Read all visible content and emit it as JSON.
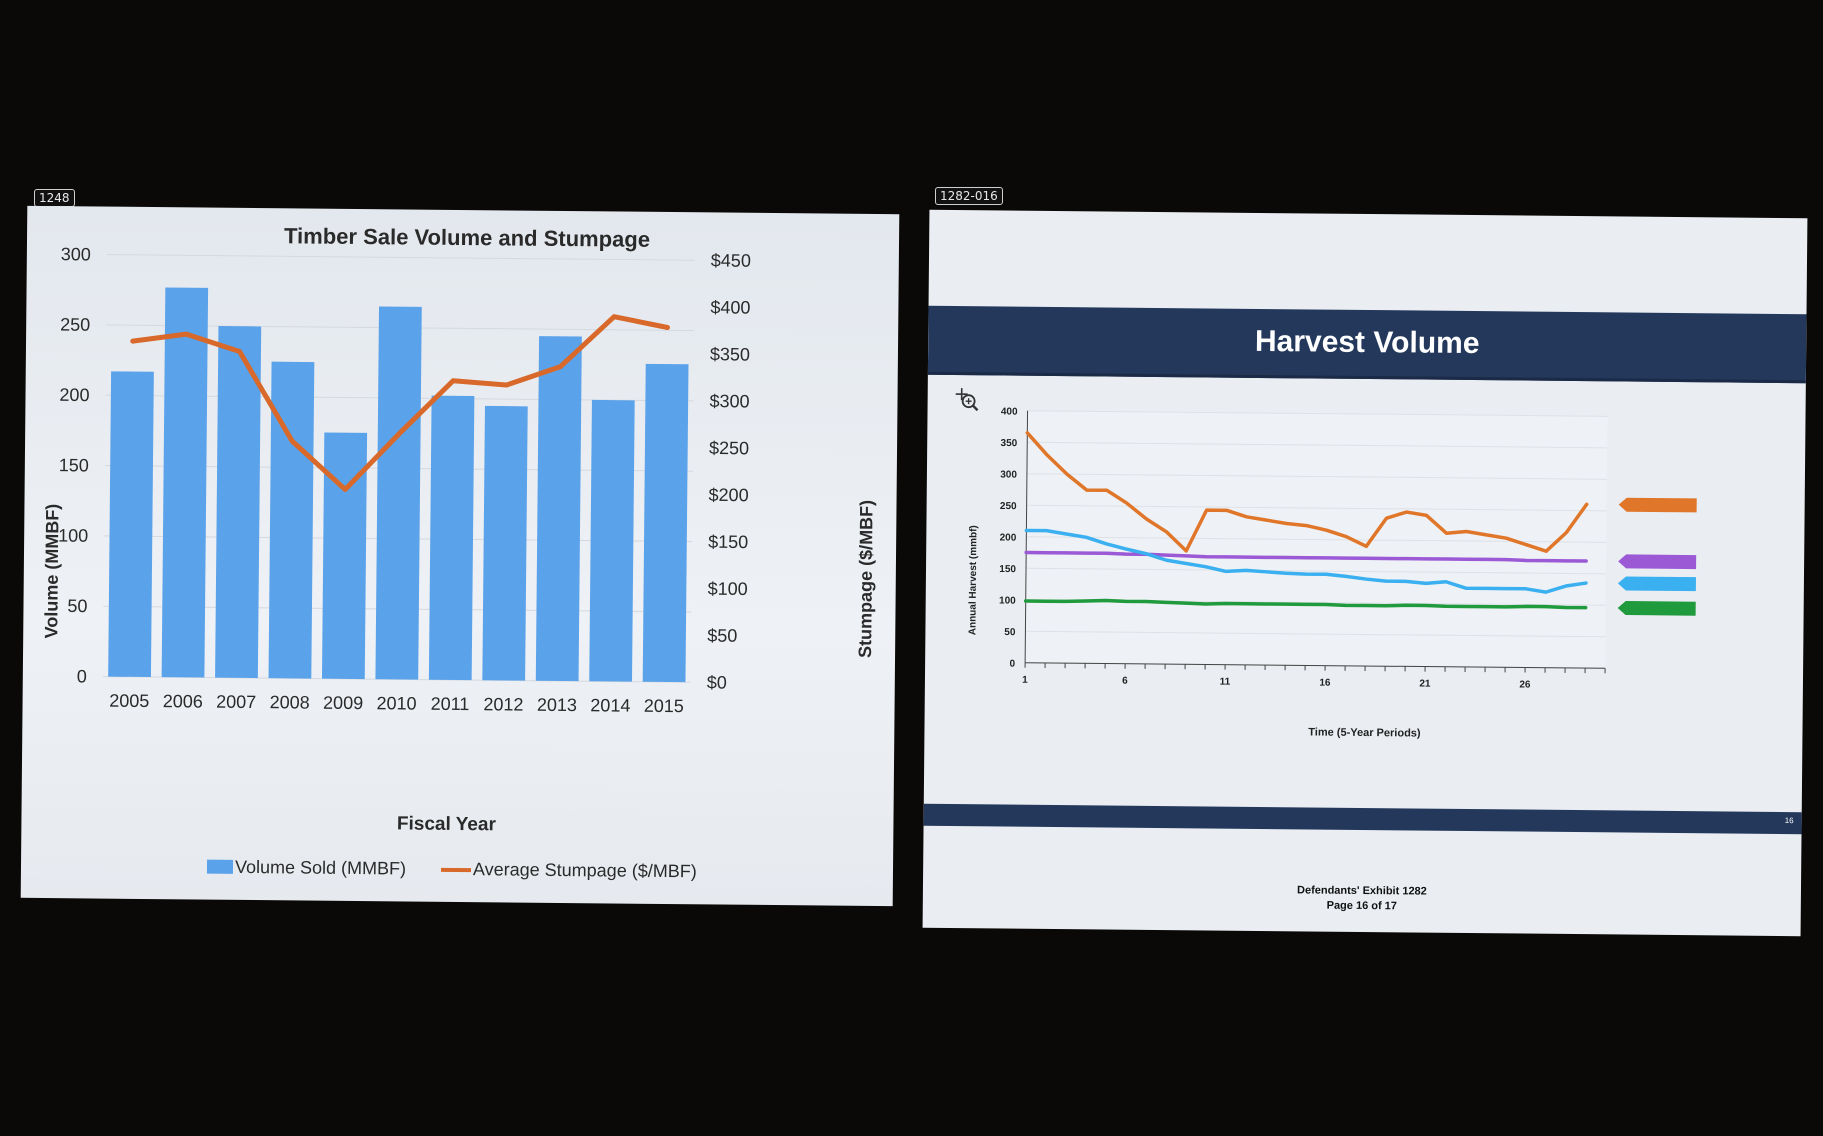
{
  "tags": {
    "left": "1248",
    "right": "1282-016"
  },
  "left_chart": {
    "title": "Timber Sale Volume and Stumpage",
    "xlabel": "Fiscal Year",
    "ylabel_left": "Volume (MMBF)",
    "ylabel_right": "Stumpage ($/MBF)",
    "left_ticks": [
      "0",
      "50",
      "100",
      "150",
      "200",
      "250",
      "300"
    ],
    "right_ticks": [
      "$0",
      "$50",
      "$100",
      "$150",
      "$200",
      "$250",
      "$300",
      "$350",
      "$400",
      "$450"
    ],
    "legend": {
      "bar": "Volume Sold (MMBF)",
      "line": "Average Stumpage ($/MBF)"
    },
    "colors": {
      "bar": "#5aa2ea",
      "line": "#d8692a"
    }
  },
  "right_slide": {
    "title": "Harvest Volume",
    "ylabel": "Annual Harvest (mmbf)",
    "xlabel": "Time (5-Year Periods)",
    "y_ticks": [
      "0",
      "50",
      "100",
      "150",
      "200",
      "250",
      "300",
      "350",
      "400"
    ],
    "x_ticks": [
      "1",
      "6",
      "11",
      "16",
      "21",
      "26"
    ],
    "slide_number": "16",
    "exhibit_line1": "Defendants' Exhibit 1282",
    "exhibit_line2": "Page 16 of 17",
    "zoom_icon": "zoom-in-icon"
  },
  "chart_data": [
    {
      "type": "bar",
      "title": "Timber Sale Volume and Stumpage",
      "xlabel": "Fiscal Year",
      "ylabel": "Volume (MMBF)",
      "y2label": "Stumpage ($/MBF)",
      "categories": [
        "2005",
        "2006",
        "2007",
        "2008",
        "2009",
        "2010",
        "2011",
        "2012",
        "2013",
        "2014",
        "2015"
      ],
      "ylim": [
        0,
        300
      ],
      "y2lim": [
        0,
        450
      ],
      "grid": true,
      "legend_position": "bottom",
      "series": [
        {
          "name": "Volume Sold (MMBF)",
          "type": "bar",
          "axis": "left",
          "values": [
            217,
            277,
            250,
            225,
            175,
            265,
            202,
            195,
            245,
            200,
            226
          ],
          "color": "#5aa2ea"
        },
        {
          "name": "Average Stumpage ($/MBF)",
          "type": "line",
          "axis": "right",
          "values": [
            358,
            366,
            348,
            253,
            202,
            262,
            319,
            315,
            335,
            389,
            378
          ],
          "color": "#d8692a"
        }
      ]
    },
    {
      "type": "line",
      "title": "Harvest Volume",
      "xlabel": "Time (5-Year Periods)",
      "ylabel": "Annual Harvest (mmbf)",
      "xlim": [
        1,
        30
      ],
      "ylim": [
        0,
        400
      ],
      "grid": true,
      "series": [
        {
          "color": "#e0762a",
          "x": [
            1,
            2,
            3,
            4,
            5,
            6,
            7,
            8,
            9,
            10,
            11,
            12,
            13,
            14,
            15,
            16,
            17,
            18,
            19,
            20,
            21,
            22,
            23,
            24,
            25,
            26,
            27,
            28,
            29
          ],
          "values": [
            365,
            330,
            300,
            275,
            275,
            255,
            230,
            210,
            180,
            245,
            245,
            235,
            230,
            225,
            222,
            215,
            205,
            190,
            235,
            245,
            240,
            212,
            215,
            210,
            205,
            195,
            185,
            215,
            260
          ]
        },
        {
          "color": "#9b59d6",
          "x": [
            1,
            2,
            3,
            4,
            5,
            6,
            7,
            8,
            9,
            10,
            11,
            12,
            13,
            14,
            15,
            16,
            17,
            18,
            19,
            20,
            21,
            22,
            23,
            24,
            25,
            26,
            27,
            28,
            29
          ],
          "values": [
            175,
            175,
            175,
            175,
            175,
            174,
            174,
            173,
            172,
            171,
            171,
            171,
            171,
            171,
            171,
            171,
            171,
            171,
            171,
            171,
            171,
            171,
            171,
            171,
            171,
            170,
            170,
            170,
            170
          ]
        },
        {
          "color": "#3ab0f0",
          "x": [
            1,
            2,
            3,
            4,
            5,
            6,
            7,
            8,
            9,
            10,
            11,
            12,
            13,
            14,
            15,
            16,
            17,
            18,
            19,
            20,
            21,
            22,
            23,
            24,
            25,
            26,
            27,
            28,
            29
          ],
          "values": [
            210,
            210,
            205,
            200,
            190,
            182,
            175,
            165,
            160,
            155,
            148,
            150,
            148,
            146,
            145,
            145,
            142,
            138,
            135,
            135,
            132,
            135,
            125,
            125,
            125,
            125,
            120,
            130,
            135
          ]
        },
        {
          "color": "#1f9a3c",
          "x": [
            1,
            2,
            3,
            4,
            5,
            6,
            7,
            8,
            9,
            10,
            11,
            12,
            13,
            14,
            15,
            16,
            17,
            18,
            19,
            20,
            21,
            22,
            23,
            24,
            25,
            26,
            27,
            28,
            29
          ],
          "values": [
            98,
            98,
            98,
            99,
            100,
            99,
            99,
            98,
            97,
            96,
            97,
            97,
            97,
            97,
            97,
            97,
            96,
            96,
            96,
            97,
            97,
            96,
            96,
            96,
            96,
            97,
            97,
            96,
            96
          ]
        }
      ]
    }
  ]
}
